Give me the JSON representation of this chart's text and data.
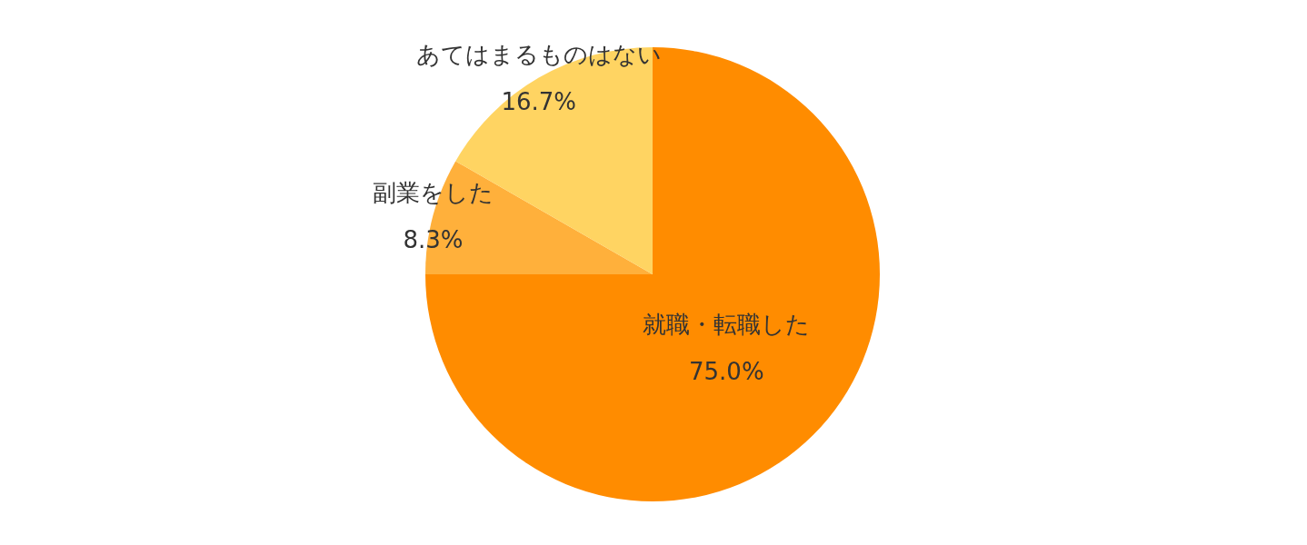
{
  "chart_data": {
    "type": "pie",
    "categories": [
      "就職・転職した",
      "副業をした",
      "あてはまるものはない"
    ],
    "values": [
      75.0,
      8.3,
      16.7
    ],
    "colors": [
      "#ff8c00",
      "#ffb03b",
      "#ffd462"
    ],
    "value_labels": [
      "75.0%",
      "8.3%",
      "16.7%"
    ]
  }
}
